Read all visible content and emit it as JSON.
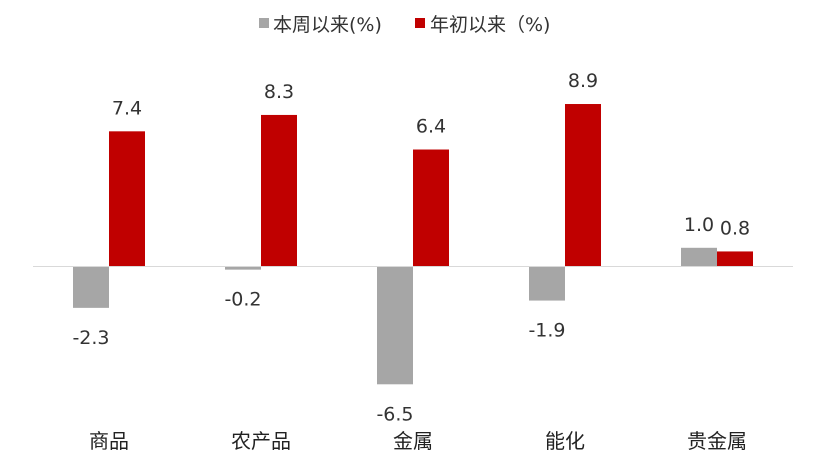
{
  "chart_data": {
    "type": "bar",
    "title": "",
    "xlabel": "",
    "ylabel": "",
    "categories": [
      "商品",
      "农产品",
      "金属",
      "能化",
      "贵金属"
    ],
    "series": [
      {
        "name": "本周以来(%)",
        "color": "#a6a6a6",
        "values": [
          -2.3,
          -0.2,
          -6.5,
          -1.9,
          1.0
        ],
        "labels": [
          "-2.3",
          "-0.2",
          "-6.5",
          "-1.9",
          "1.0"
        ]
      },
      {
        "name": "年初以来（%)",
        "color": "#c00000",
        "values": [
          7.4,
          8.3,
          6.4,
          8.9,
          0.8
        ],
        "labels": [
          "7.4",
          "8.3",
          "6.4",
          "8.9",
          "0.8"
        ]
      }
    ],
    "ylim": [
      -7.0,
      9.5
    ],
    "grid": false,
    "legend": "top-center",
    "axis_color": "#d9d9d9"
  }
}
